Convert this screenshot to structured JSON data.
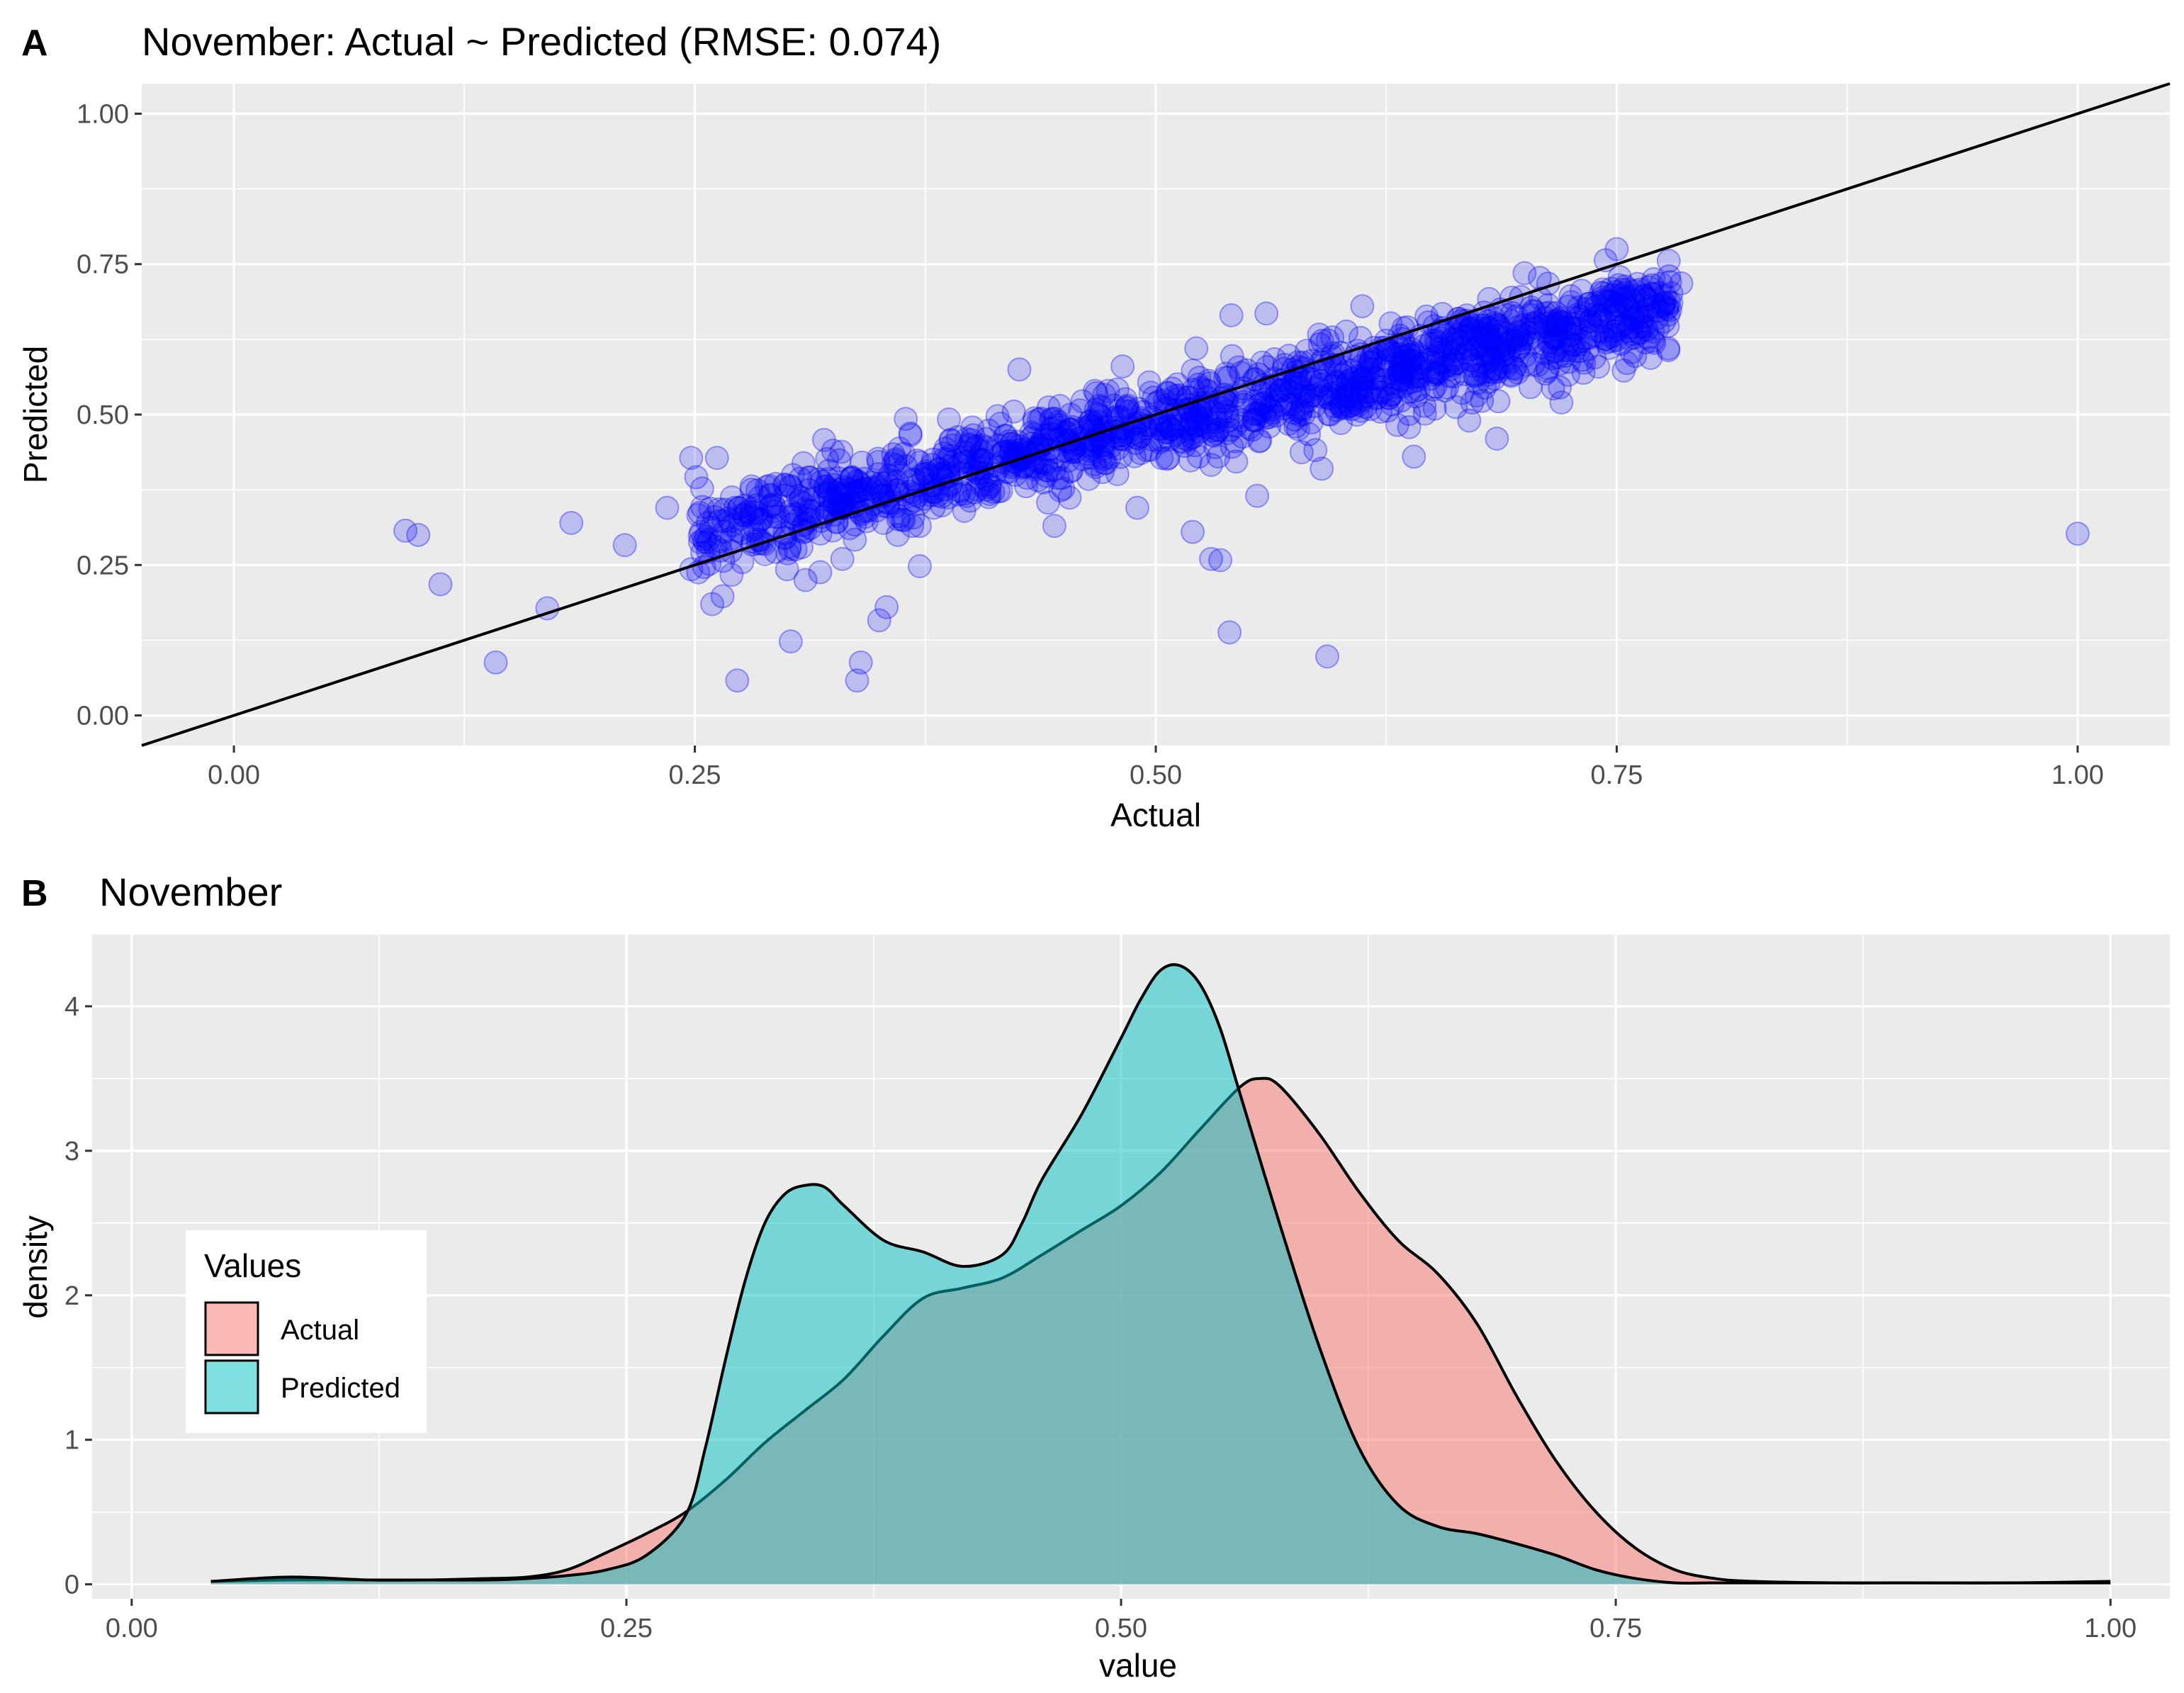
{
  "panel_a": {
    "tag": "A",
    "title": "November: Actual ~ Predicted (RMSE: 0.074)",
    "xlabel": "Actual",
    "ylabel": "Predicted"
  },
  "panel_b": {
    "tag": "B",
    "title": "November",
    "xlabel": "value",
    "ylabel": "density"
  },
  "chart_data": [
    {
      "type": "scatter",
      "title": "November: Actual ~ Predicted (RMSE: 0.074)",
      "xlabel": "Actual",
      "ylabel": "Predicted",
      "xlim": [
        -0.05,
        1.05
      ],
      "ylim": [
        -0.05,
        1.05
      ],
      "x_ticks": [
        "0.00",
        "0.25",
        "0.50",
        "0.75",
        "1.00"
      ],
      "y_ticks": [
        "0.00",
        "0.25",
        "0.50",
        "0.75",
        "1.00"
      ],
      "point_color": "#0000ff",
      "point_alpha": 0.2,
      "reference_line": {
        "slope": 1,
        "intercept": 0,
        "color": "#000000"
      },
      "grid": true,
      "points": [
        {
          "x": 0.093,
          "y": 0.307
        },
        {
          "x": 0.112,
          "y": 0.218
        },
        {
          "x": 0.142,
          "y": 0.088
        },
        {
          "x": 0.17,
          "y": 0.178
        },
        {
          "x": 0.183,
          "y": 0.32
        },
        {
          "x": 0.212,
          "y": 0.283
        },
        {
          "x": 0.235,
          "y": 0.345
        },
        {
          "x": 0.248,
          "y": 0.428
        },
        {
          "x": 0.262,
          "y": 0.428
        },
        {
          "x": 0.248,
          "y": 0.243
        },
        {
          "x": 0.265,
          "y": 0.198
        },
        {
          "x": 0.273,
          "y": 0.058
        },
        {
          "x": 0.288,
          "y": 0.268
        },
        {
          "x": 0.3,
          "y": 0.243
        },
        {
          "x": 0.302,
          "y": 0.123
        },
        {
          "x": 0.31,
          "y": 0.225
        },
        {
          "x": 0.318,
          "y": 0.238
        },
        {
          "x": 0.325,
          "y": 0.44
        },
        {
          "x": 0.33,
          "y": 0.26
        },
        {
          "x": 0.338,
          "y": 0.058
        },
        {
          "x": 0.34,
          "y": 0.088
        },
        {
          "x": 0.35,
          "y": 0.158
        },
        {
          "x": 0.354,
          "y": 0.18
        },
        {
          "x": 0.372,
          "y": 0.248
        },
        {
          "x": 0.36,
          "y": 0.3
        },
        {
          "x": 0.372,
          "y": 0.315
        },
        {
          "x": 0.423,
          "y": 0.505
        },
        {
          "x": 0.426,
          "y": 0.575
        },
        {
          "x": 0.445,
          "y": 0.315
        },
        {
          "x": 0.482,
          "y": 0.58
        },
        {
          "x": 0.49,
          "y": 0.345
        },
        {
          "x": 0.52,
          "y": 0.305
        },
        {
          "x": 0.522,
          "y": 0.61
        },
        {
          "x": 0.53,
          "y": 0.26
        },
        {
          "x": 0.535,
          "y": 0.258
        },
        {
          "x": 0.54,
          "y": 0.138
        },
        {
          "x": 0.541,
          "y": 0.665
        },
        {
          "x": 0.56,
          "y": 0.668
        },
        {
          "x": 0.555,
          "y": 0.365
        },
        {
          "x": 0.593,
          "y": 0.098
        },
        {
          "x": 0.59,
          "y": 0.41
        },
        {
          "x": 0.598,
          "y": 0.578
        },
        {
          "x": 0.612,
          "y": 0.68
        },
        {
          "x": 0.64,
          "y": 0.43
        },
        {
          "x": 0.67,
          "y": 0.49
        },
        {
          "x": 0.685,
          "y": 0.46
        },
        {
          "x": 0.7,
          "y": 0.735
        },
        {
          "x": 0.72,
          "y": 0.52
        },
        {
          "x": 0.738,
          "y": 0.595
        },
        {
          "x": 0.75,
          "y": 0.775
        },
        {
          "x": 0.76,
          "y": 0.705
        },
        {
          "x": 0.77,
          "y": 0.725
        },
        {
          "x": 0.785,
          "y": 0.718
        },
        {
          "x": 0.778,
          "y": 0.61
        },
        {
          "x": 0.1,
          "y": 0.3
        },
        {
          "x": 1.0,
          "y": 0.302
        }
      ]
    },
    {
      "type": "area",
      "title": "November",
      "xlabel": "value",
      "ylabel": "density",
      "xlim": [
        -0.02,
        1.03
      ],
      "ylim": [
        -0.1,
        4.5
      ],
      "x_ticks": [
        "0.00",
        "0.25",
        "0.50",
        "0.75",
        "1.00"
      ],
      "y_ticks": [
        "0",
        "1",
        "2",
        "3",
        "4"
      ],
      "grid": true,
      "legend": {
        "title": "Values",
        "position": "left"
      },
      "series": [
        {
          "name": "Actual",
          "color": "#f8766d",
          "x": [
            0.04,
            0.08,
            0.12,
            0.15,
            0.18,
            0.2,
            0.22,
            0.24,
            0.26,
            0.28,
            0.3,
            0.32,
            0.34,
            0.36,
            0.38,
            0.4,
            0.42,
            0.44,
            0.46,
            0.48,
            0.5,
            0.52,
            0.54,
            0.56,
            0.57,
            0.58,
            0.6,
            0.62,
            0.64,
            0.66,
            0.68,
            0.7,
            0.72,
            0.74,
            0.76,
            0.78,
            0.8,
            0.82,
            0.86,
            0.9,
            0.95,
            1.0
          ],
          "values": [
            0.02,
            0.03,
            0.03,
            0.03,
            0.04,
            0.05,
            0.1,
            0.22,
            0.35,
            0.5,
            0.72,
            0.98,
            1.2,
            1.42,
            1.72,
            1.98,
            2.05,
            2.12,
            2.28,
            2.45,
            2.62,
            2.85,
            3.15,
            3.44,
            3.5,
            3.45,
            3.12,
            2.72,
            2.38,
            2.15,
            1.8,
            1.3,
            0.85,
            0.5,
            0.25,
            0.1,
            0.04,
            0.02,
            0.01,
            0.01,
            0.01,
            0.02
          ]
        },
        {
          "name": "Predicted",
          "color": "#00bfc4",
          "x": [
            0.04,
            0.08,
            0.12,
            0.15,
            0.18,
            0.2,
            0.22,
            0.24,
            0.26,
            0.28,
            0.29,
            0.3,
            0.31,
            0.32,
            0.33,
            0.34,
            0.35,
            0.36,
            0.38,
            0.4,
            0.42,
            0.44,
            0.45,
            0.46,
            0.48,
            0.5,
            0.51,
            0.52,
            0.53,
            0.54,
            0.55,
            0.56,
            0.58,
            0.6,
            0.62,
            0.64,
            0.66,
            0.68,
            0.7,
            0.72,
            0.74,
            0.76,
            0.78,
            0.8,
            0.85,
            0.9,
            1.0
          ],
          "values": [
            0.02,
            0.05,
            0.03,
            0.03,
            0.03,
            0.04,
            0.06,
            0.1,
            0.2,
            0.48,
            0.95,
            1.55,
            2.1,
            2.5,
            2.7,
            2.76,
            2.75,
            2.62,
            2.38,
            2.3,
            2.2,
            2.28,
            2.5,
            2.8,
            3.25,
            3.78,
            4.05,
            4.25,
            4.28,
            4.15,
            3.85,
            3.4,
            2.5,
            1.65,
            0.95,
            0.55,
            0.4,
            0.35,
            0.28,
            0.2,
            0.1,
            0.04,
            0.01,
            0.01,
            0.01,
            0.01,
            0.01
          ]
        }
      ]
    }
  ]
}
